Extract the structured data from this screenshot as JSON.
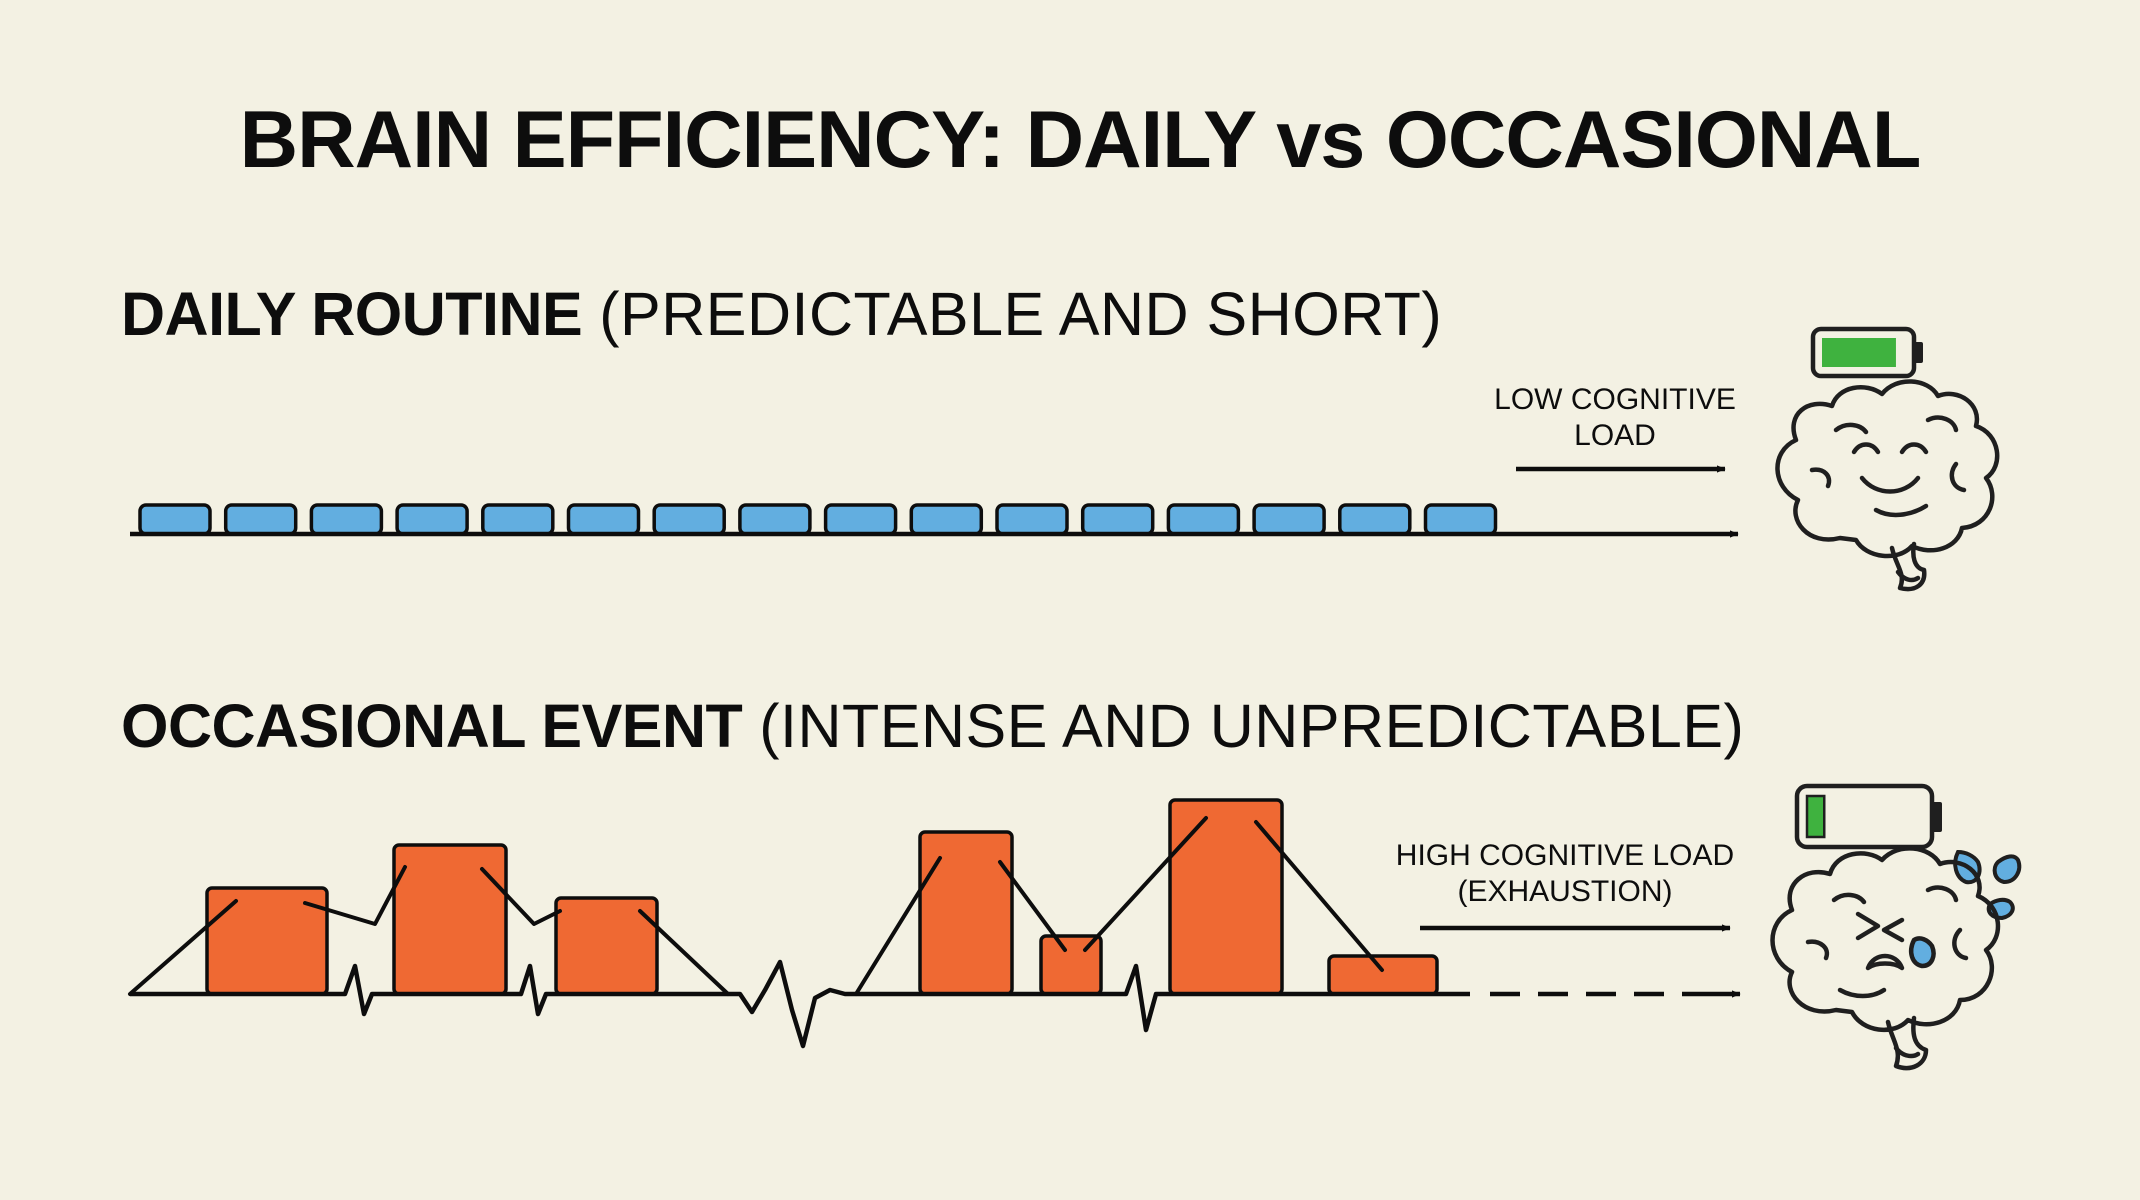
{
  "title": "BRAIN EFFICIENCY: DAILY vs OCCASIONAL",
  "daily": {
    "heading_bold": "DAILY ROUTINE",
    "heading_detail": "(PREDICTABLE AND SHORT)",
    "load_label_line1": "LOW COGNITIVE",
    "load_label_line2": "LOAD",
    "battery_level": 0.85,
    "battery_color": "#3fb23f",
    "block_color": "#62aee0",
    "block_count": 16,
    "brain_icon": "happy-brain-icon"
  },
  "occasional": {
    "heading_bold": "OCCASIONAL EVENT",
    "heading_detail": "(INTENSE AND UNPREDICTABLE)",
    "load_label_line1": "HIGH COGNITIVE LOAD",
    "load_label_line2": "(EXHAUSTION)",
    "battery_level": 0.15,
    "battery_color": "#3fb23f",
    "block_color": "#ef6933",
    "brain_icon": "exhausted-brain-icon"
  }
}
